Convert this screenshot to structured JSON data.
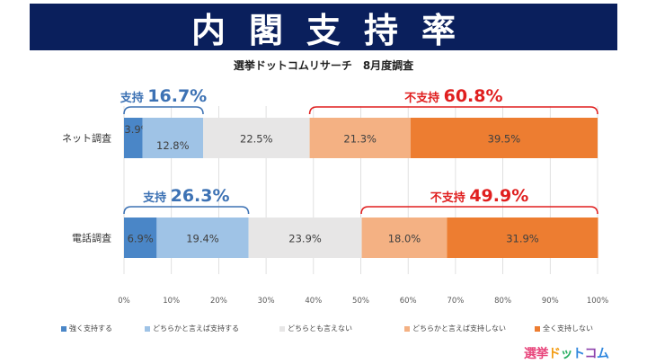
{
  "banner": {
    "title": "内閣支持率"
  },
  "subtitle": "選挙ドットコムリサーチ　8月度調査",
  "chart_data": {
    "type": "bar",
    "orientation": "horizontal",
    "stacked": true,
    "categories": [
      "ネット調査",
      "電話調査"
    ],
    "series": [
      {
        "name": "強く支持する",
        "values": [
          3.9,
          6.9
        ],
        "labels": [
          "3.9%",
          "6.9%"
        ],
        "color": "#4a86c7"
      },
      {
        "name": "どちらかと言えば支持する",
        "values": [
          12.8,
          19.4
        ],
        "labels": [
          "12.8%",
          "19.4%"
        ],
        "color": "#9fc3e6"
      },
      {
        "name": "どちらとも言えない",
        "values": [
          22.5,
          23.9
        ],
        "labels": [
          "22.5%",
          "23.9%"
        ],
        "color": "#e7e6e6"
      },
      {
        "name": "どちらかと言えば支持しない",
        "values": [
          21.3,
          18.0
        ],
        "labels": [
          "21.3%",
          "18.0%"
        ],
        "color": "#f4b183"
      },
      {
        "name": "全く支持しない",
        "values": [
          39.5,
          31.9
        ],
        "labels": [
          "39.5%",
          "31.9%"
        ],
        "color": "#ed7d31"
      }
    ],
    "xlim": [
      0,
      100
    ],
    "ticks": [
      "0%",
      "10%",
      "20%",
      "30%",
      "40%",
      "50%",
      "60%",
      "70%",
      "80%",
      "90%",
      "100%"
    ],
    "grid": true,
    "legend": "bottom",
    "annotations": [
      {
        "row": 0,
        "side": "support",
        "label": "支持",
        "value": "16.7%",
        "from": 0,
        "to": 16.7,
        "color": "#3d72b4"
      },
      {
        "row": 0,
        "side": "oppose",
        "label": "不支持",
        "value": "60.8%",
        "from": 39.2,
        "to": 100,
        "color": "#e01f1f"
      },
      {
        "row": 1,
        "side": "support",
        "label": "支持",
        "value": "26.3%",
        "from": 0,
        "to": 26.3,
        "color": "#3d72b4"
      },
      {
        "row": 1,
        "side": "oppose",
        "label": "不支持",
        "value": "49.9%",
        "from": 50.1,
        "to": 100,
        "color": "#e01f1f"
      }
    ]
  },
  "logo": {
    "chars": [
      "選",
      "挙",
      "ド",
      "ッ",
      "ト",
      "コ",
      "ム"
    ],
    "colors": [
      "#e8467c",
      "#e8467c",
      "#f39c12",
      "#27ae60",
      "#2e86de",
      "#8e44ad",
      "#2e86de"
    ]
  }
}
